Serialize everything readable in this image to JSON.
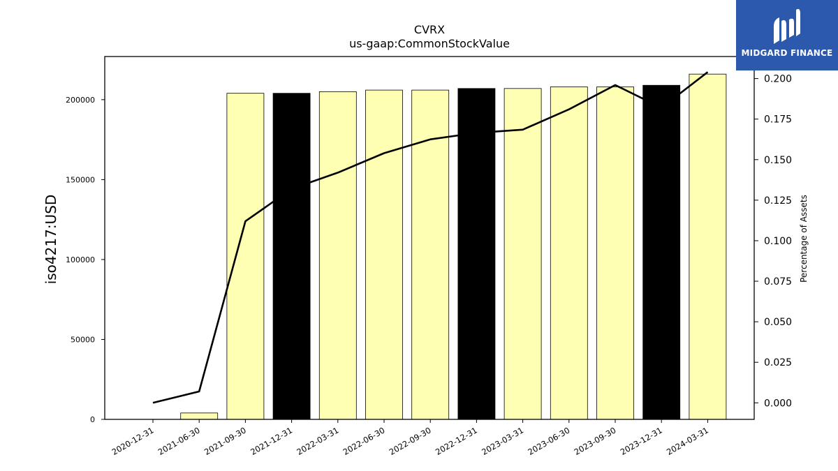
{
  "logo": {
    "text": "MIDGARD FINANCE",
    "color": "#2d59ad"
  },
  "chart_data": {
    "type": "bar",
    "title": "CVRX",
    "subtitle": "us-gaap:CommonStockValue",
    "ylabel": "iso4217:USD",
    "y2label": "Percentage of Assets",
    "categories": [
      "2020-12-31",
      "2021-06-30",
      "2021-09-30",
      "2021-12-31",
      "2022-03-31",
      "2022-06-30",
      "2022-09-30",
      "2022-12-31",
      "2023-03-31",
      "2023-06-30",
      "2023-09-30",
      "2023-12-31",
      "2024-03-31"
    ],
    "series": [
      {
        "values": [
          0,
          4000,
          204000,
          204000,
          205000,
          206000,
          206000,
          207000,
          207000,
          208000,
          208000,
          209000,
          216000
        ],
        "colors": [
          "#ffffb3",
          "#ffffb3",
          "#ffffb3",
          "#000000",
          "#ffffb3",
          "#ffffb3",
          "#ffffb3",
          "#000000",
          "#ffffb3",
          "#ffffb3",
          "#ffffb3",
          "#000000",
          "#ffffb3"
        ]
      },
      {
        "type": "line",
        "axis": "right",
        "color": "#000000",
        "values": [
          0.0,
          0.007,
          0.112,
          0.132,
          0.142,
          0.154,
          0.1625,
          0.1665,
          0.1685,
          0.181,
          0.196,
          0.182,
          0.204
        ]
      }
    ],
    "ylim": [
      0,
      227000
    ],
    "y2lim": [
      -0.0102,
      0.2136
    ],
    "yticks": [
      0,
      50000,
      100000,
      150000,
      200000
    ],
    "y2ticks": [
      "0.000",
      "0.025",
      "0.050",
      "0.075",
      "0.100",
      "0.125",
      "0.150",
      "0.175",
      "0.200"
    ],
    "grid": false,
    "legend": "none"
  }
}
